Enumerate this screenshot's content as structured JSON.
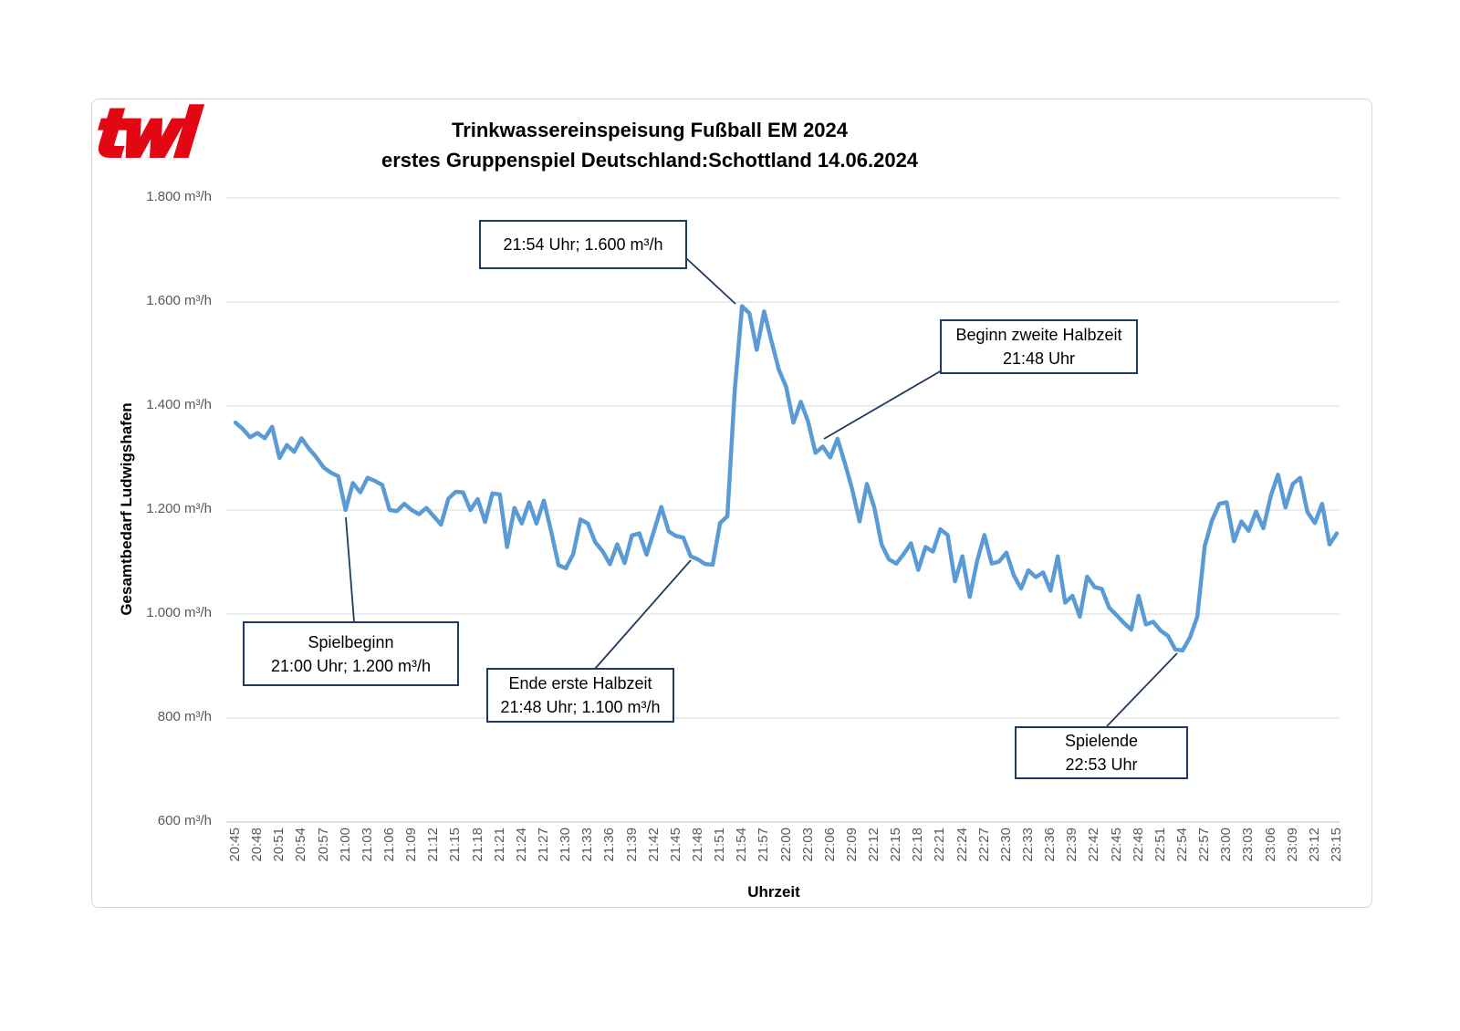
{
  "logo": {
    "text": "twl",
    "color": "#e30613"
  },
  "title": {
    "line1": "Trinkwassereinspeisung Fußball EM 2024",
    "line2": "erstes Gruppenspiel Deutschland:Schottland 14.06.2024"
  },
  "chart_data": {
    "type": "line",
    "title": "Trinkwassereinspeisung Fußball EM 2024 — erstes Gruppenspiel Deutschland:Schottland 14.06.2024",
    "xlabel": "Uhrzeit",
    "ylabel": "Gesamtbedarf Ludwigshafen",
    "ylim": [
      600,
      1800
    ],
    "grid": true,
    "legend": "none",
    "line_color": "#5b9bd5",
    "grid_color": "#d9d9d9",
    "axis_line_color": "#bfbfbf",
    "callout_color": "#1f3a5f",
    "tick_label_color": "#595959",
    "y_ticks": [
      "1.800 m³/h",
      "1.600 m³/h",
      "1.400 m³/h",
      "1.200 m³/h",
      "1.000 m³/h",
      "800 m³/h",
      "600 m³/h"
    ],
    "y_tick_values": [
      1800,
      1600,
      1400,
      1200,
      1000,
      800,
      600
    ],
    "x_tick_labels": [
      "20:45",
      "20:48",
      "20:51",
      "20:54",
      "20:57",
      "21:00",
      "21:03",
      "21:06",
      "21:09",
      "21:12",
      "21:15",
      "21:18",
      "21:21",
      "21:24",
      "21:27",
      "21:30",
      "21:33",
      "21:36",
      "21:39",
      "21:42",
      "21:45",
      "21:48",
      "21:51",
      "21:54",
      "21:57",
      "22:00",
      "22:03",
      "22:06",
      "22:09",
      "22:12",
      "22:15",
      "22:18",
      "22:21",
      "22:24",
      "22:27",
      "22:30",
      "22:33",
      "22:36",
      "22:39",
      "22:42",
      "22:45",
      "22:48",
      "22:51",
      "22:54",
      "22:57",
      "23:00",
      "23:03",
      "23:06",
      "23:09",
      "23:12",
      "23:15"
    ],
    "x_start": "20:45",
    "x_end": "23:15",
    "x_step_minutes": 1,
    "series": [
      {
        "name": "Gesamtbedarf Ludwigshafen (m³/h)",
        "values": [
          1368,
          1356,
          1340,
          1348,
          1338,
          1360,
          1300,
          1325,
          1312,
          1338,
          1318,
          1302,
          1282,
          1272,
          1265,
          1200,
          1252,
          1234,
          1262,
          1256,
          1248,
          1200,
          1198,
          1212,
          1200,
          1192,
          1204,
          1188,
          1172,
          1222,
          1235,
          1234,
          1200,
          1221,
          1177,
          1232,
          1230,
          1129,
          1204,
          1174,
          1215,
          1174,
          1218,
          1159,
          1094,
          1088,
          1115,
          1182,
          1174,
          1138,
          1121,
          1096,
          1134,
          1098,
          1151,
          1155,
          1114,
          1160,
          1206,
          1159,
          1150,
          1147,
          1111,
          1105,
          1096,
          1095,
          1175,
          1188,
          1430,
          1592,
          1578,
          1508,
          1582,
          1525,
          1470,
          1437,
          1368,
          1408,
          1370,
          1310,
          1322,
          1301,
          1337,
          1290,
          1240,
          1178,
          1250,
          1205,
          1134,
          1105,
          1097,
          1115,
          1136,
          1085,
          1129,
          1120,
          1163,
          1152,
          1063,
          1111,
          1033,
          1101,
          1152,
          1097,
          1101,
          1118,
          1075,
          1049,
          1084,
          1071,
          1080,
          1045,
          1111,
          1022,
          1035,
          995,
          1072,
          1052,
          1048,
          1012,
          998,
          983,
          970,
          1035,
          980,
          985,
          968,
          958,
          932,
          930,
          955,
          995,
          1130,
          1180,
          1212,
          1215,
          1140,
          1178,
          1160,
          1197,
          1165,
          1227,
          1268,
          1205,
          1250,
          1262,
          1196,
          1175,
          1212,
          1134,
          1155
        ]
      }
    ],
    "annotations": [
      {
        "line1": "21:54 Uhr; 1.600 m³/h",
        "anchor_time": "21:54",
        "anchor_value": 1600
      },
      {
        "line1": "Beginn zweite Halbzeit",
        "line2": "21:48 Uhr"
      },
      {
        "line1": "Spielbeginn",
        "line2": "21:00 Uhr; 1.200 m³/h",
        "anchor_time": "21:00",
        "anchor_value": 1200
      },
      {
        "line1": "Ende erste Halbzeit",
        "line2": "21:48 Uhr; 1.100 m³/h",
        "anchor_time": "21:48",
        "anchor_value": 1100
      },
      {
        "line1": "Spielende",
        "line2": "22:53 Uhr",
        "anchor_time": "22:53"
      }
    ]
  }
}
